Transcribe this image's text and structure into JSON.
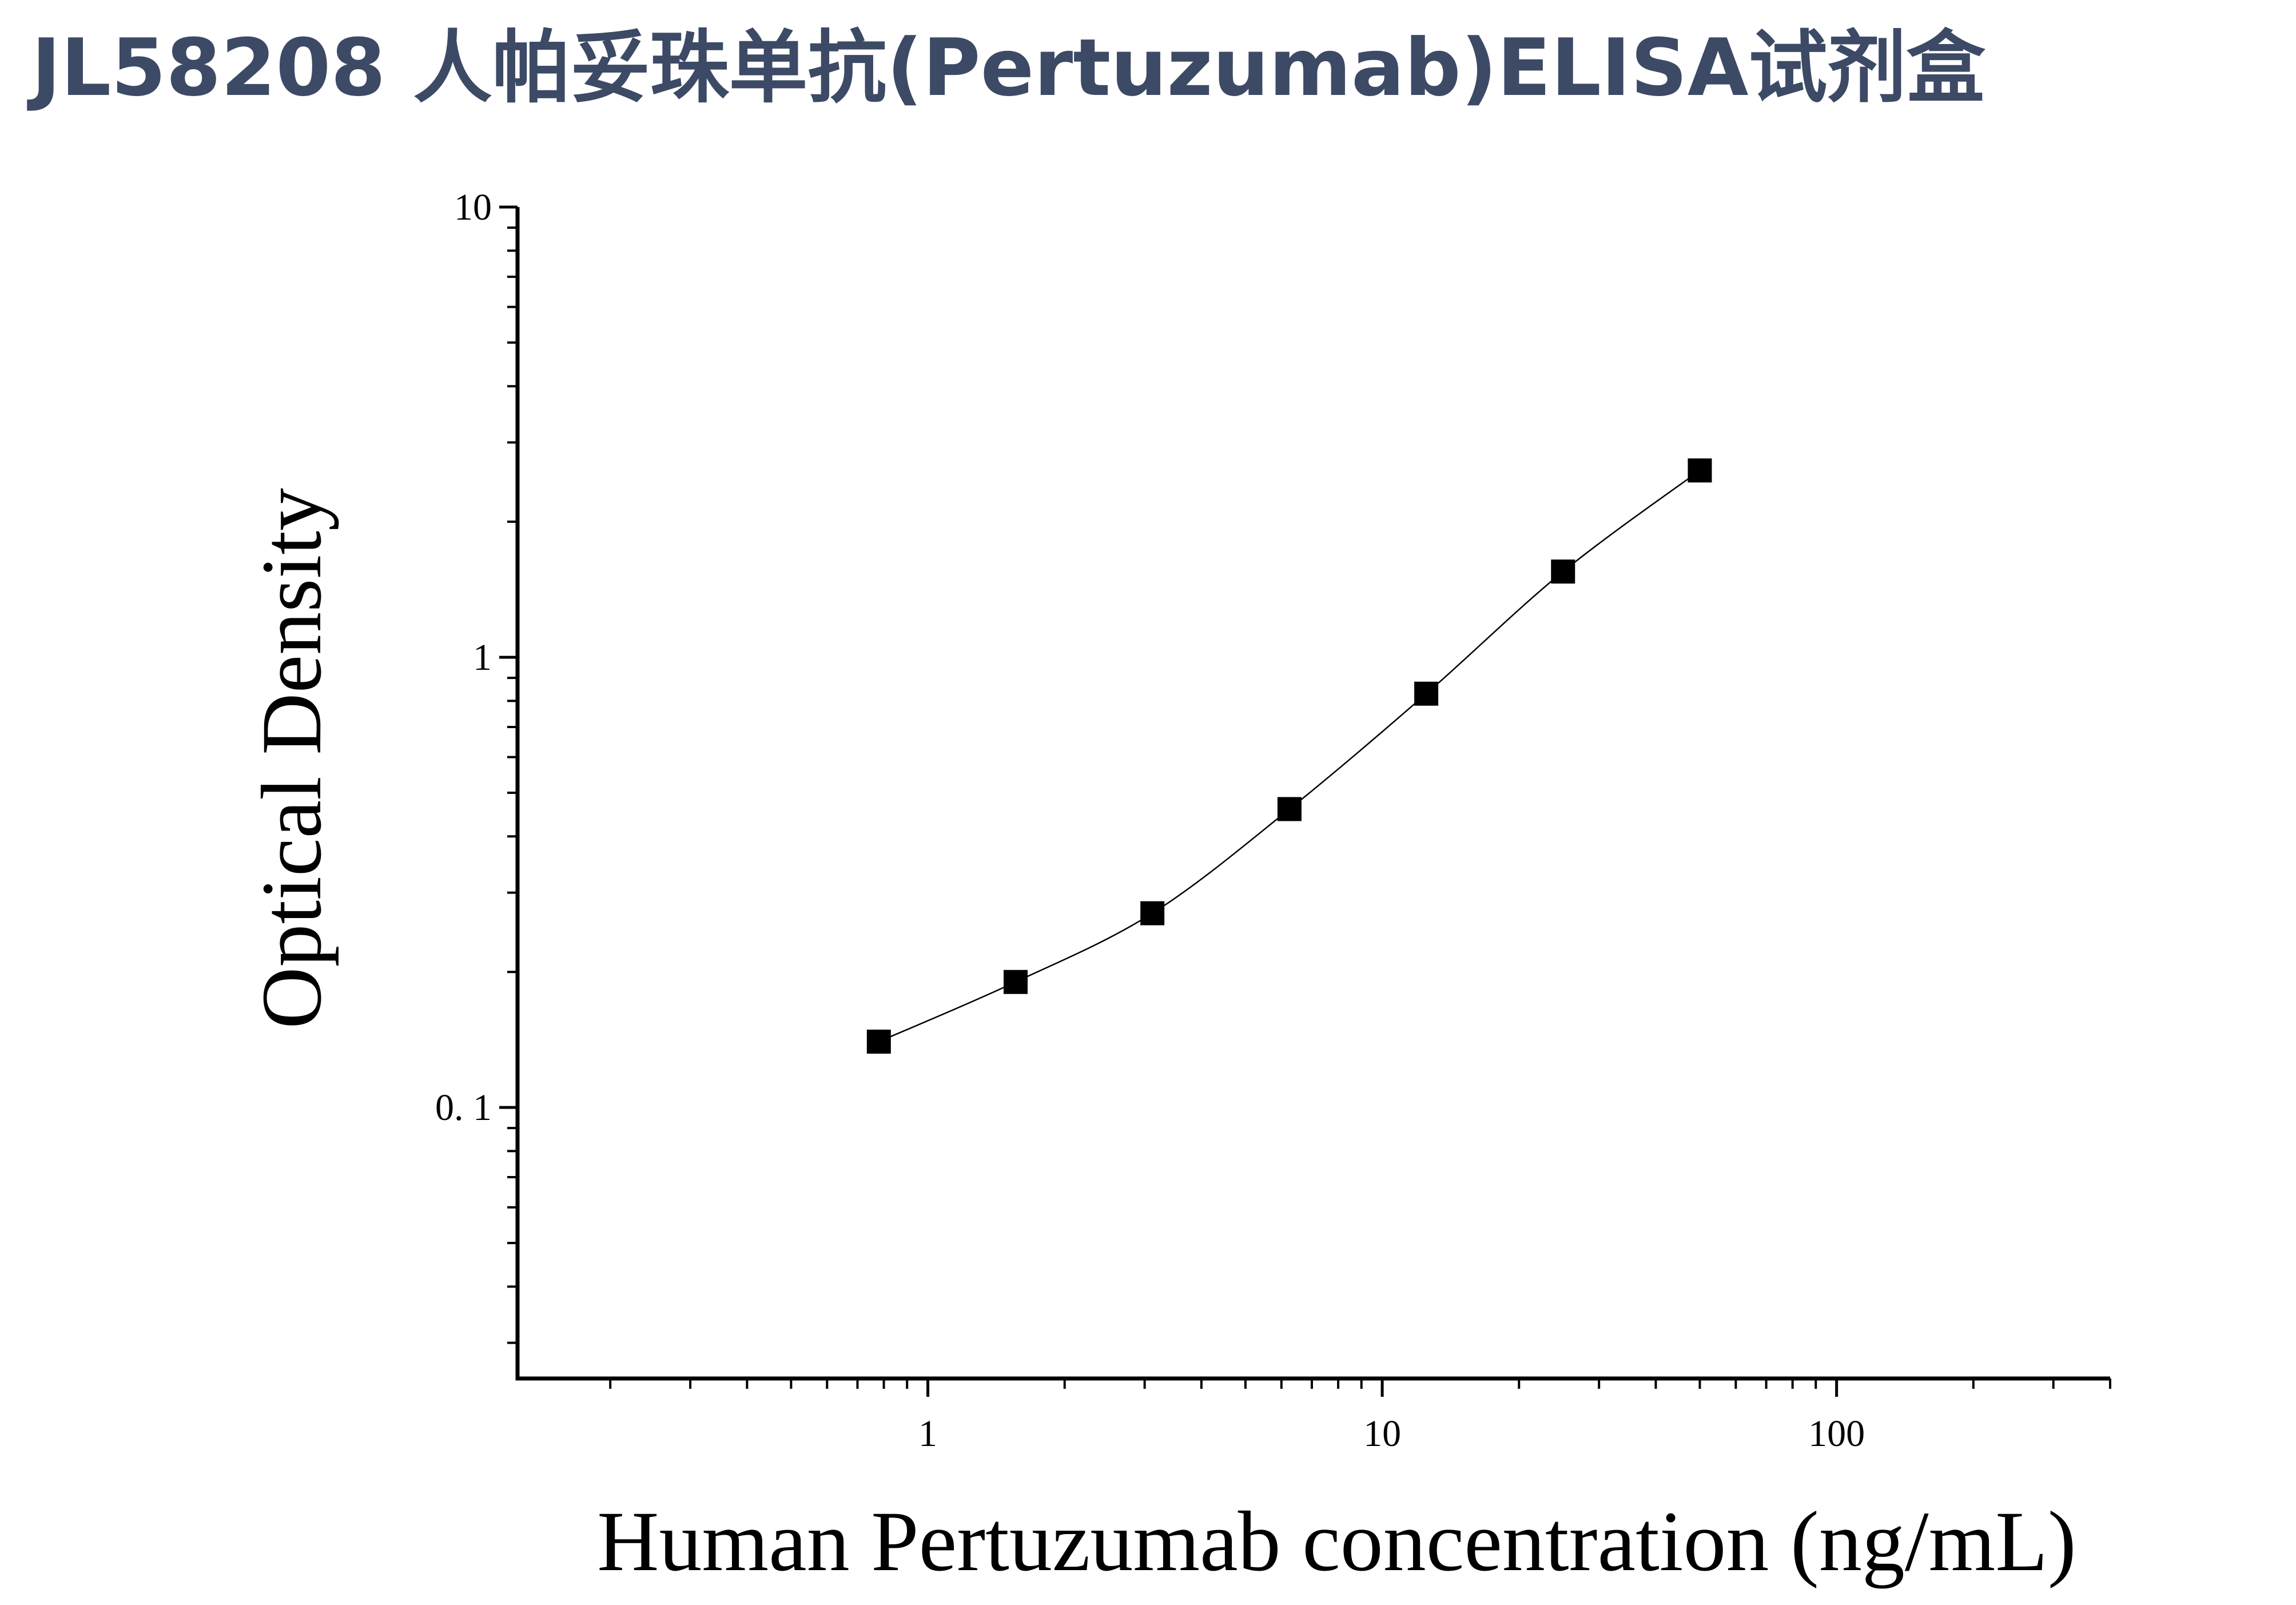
{
  "title": "JL58208 人帕妥珠单抗(Pertuzumab)ELISA试剂盒",
  "chart_data": {
    "type": "scatter",
    "x_scale": "log",
    "y_scale": "log",
    "xlabel": "Human Pertuzumab concentration (ng/mL)",
    "ylabel": "Optical Density",
    "xlim": [
      0.125,
      400
    ],
    "ylim": [
      0.025,
      10
    ],
    "x_ticks": [
      {
        "value": 1,
        "label": "1"
      },
      {
        "value": 10,
        "label": "10"
      },
      {
        "value": 100,
        "label": "100"
      }
    ],
    "y_ticks": [
      {
        "value": 0.1,
        "label": "0. 1"
      },
      {
        "value": 1,
        "label": "1"
      },
      {
        "value": 10,
        "label": "10"
      }
    ],
    "grid": false,
    "legend": "none",
    "marker": "square",
    "marker_color": "#000000",
    "curve": "fitted-line",
    "series": [
      {
        "x": [
          0.78,
          1.56,
          3.12,
          6.25,
          12.5,
          25,
          50
        ],
        "y": [
          0.14,
          0.19,
          0.27,
          0.46,
          0.83,
          1.55,
          2.6
        ]
      }
    ]
  }
}
